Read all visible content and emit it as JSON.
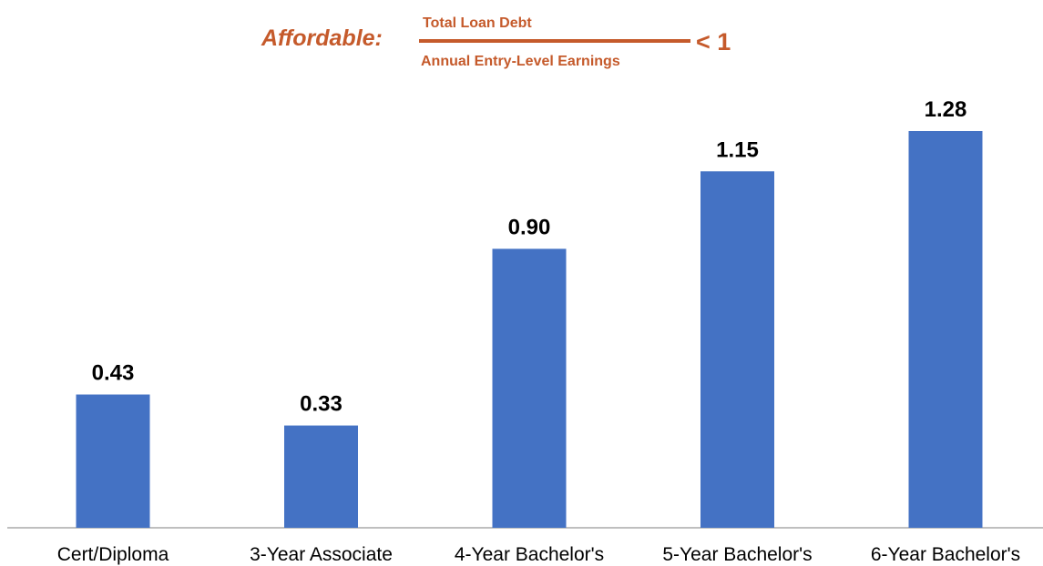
{
  "formula": {
    "label": "Affordable:",
    "numerator": "Total Loan Debt",
    "denominator": "Annual Entry-Level Earnings",
    "comparison": "< 1",
    "color": "#C55A2B"
  },
  "chart_data": {
    "type": "bar",
    "categories": [
      "Cert/Diploma",
      "3-Year Associate",
      "4-Year Bachelor's",
      "5-Year Bachelor's",
      "6-Year Bachelor's"
    ],
    "values": [
      0.43,
      0.33,
      0.9,
      1.15,
      1.28
    ],
    "value_labels": [
      "0.43",
      "0.33",
      "0.90",
      "1.15",
      "1.28"
    ],
    "title": "",
    "xlabel": "",
    "ylabel": "",
    "ylim": [
      0,
      1.28
    ],
    "grid": false,
    "legend": "none",
    "bar_color": "#4472C4"
  }
}
